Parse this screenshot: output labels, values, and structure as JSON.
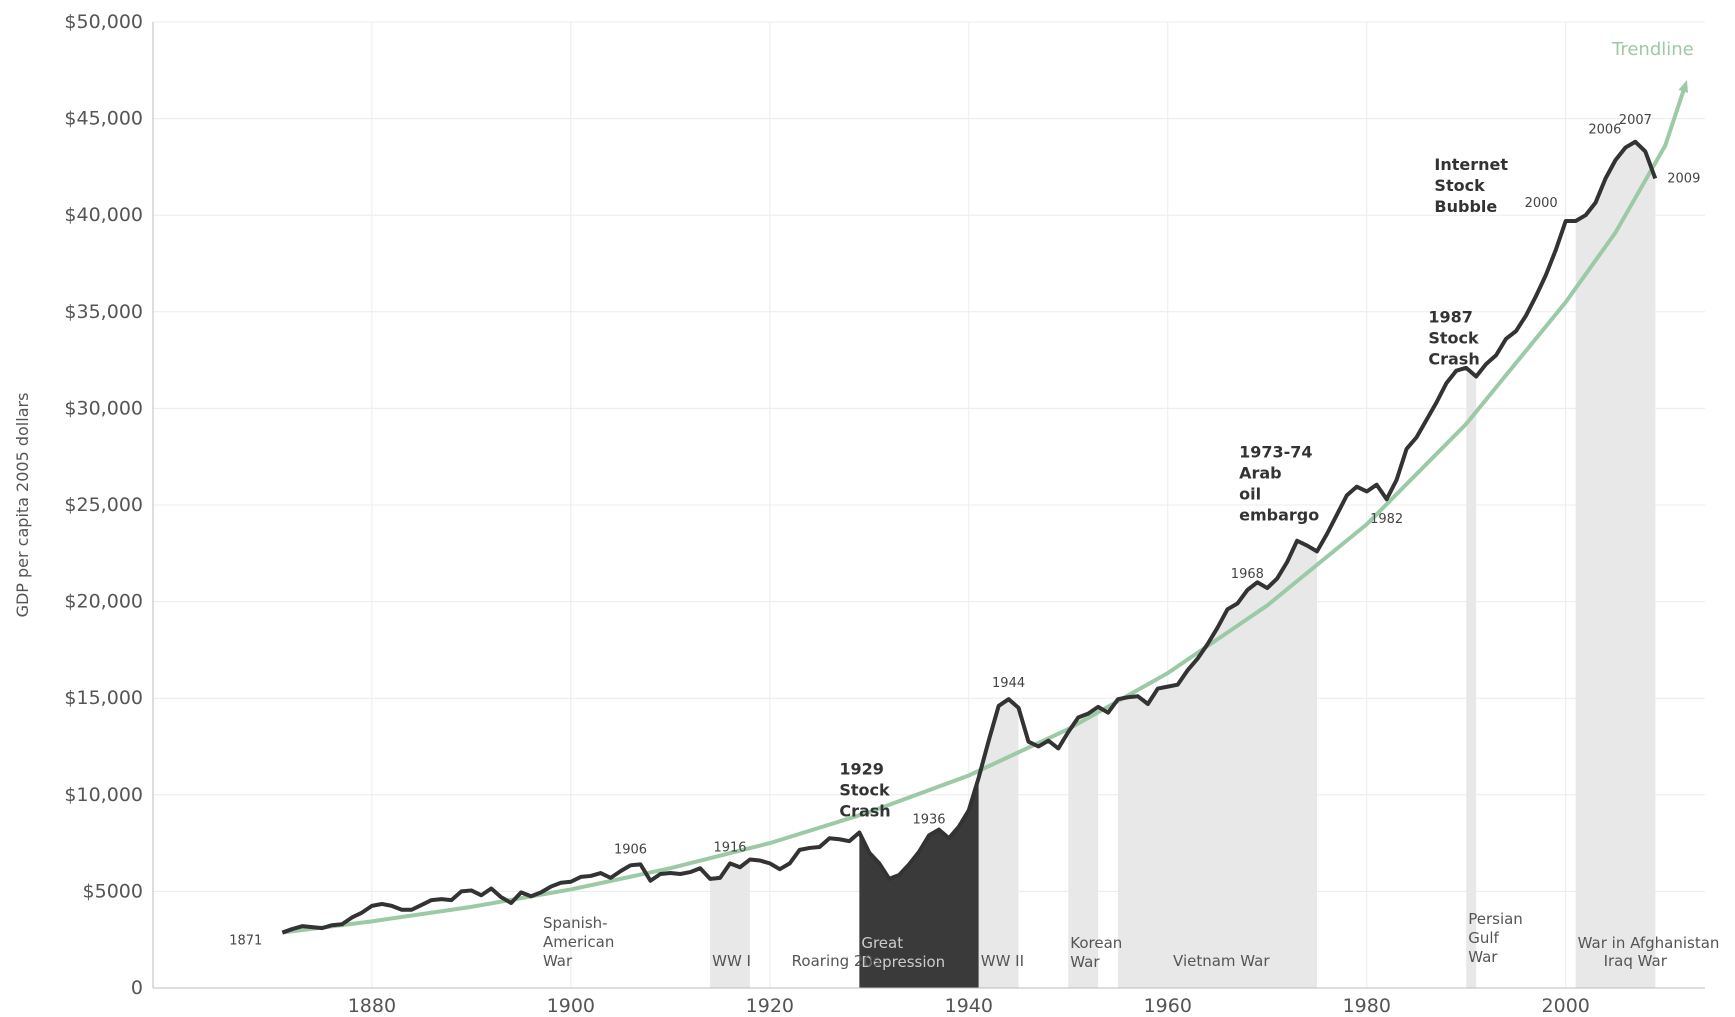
{
  "chart_data": {
    "type": "line",
    "title": "",
    "xlabel": "",
    "ylabel": "GDP per capita 2005 dollars",
    "xlim": [
      1858,
      2014
    ],
    "ylim": [
      0,
      50000
    ],
    "x_ticks": [
      "1880",
      "1900",
      "1920",
      "1940",
      "1960",
      "1980",
      "2000"
    ],
    "y_ticks": [
      "0",
      "$5000",
      "$10,000",
      "$15,000",
      "$20,000",
      "$25,000",
      "$30,000",
      "$35,000",
      "$40,000",
      "$45,000",
      "$50,000"
    ],
    "grid": true,
    "colors": {
      "gdp": "#333333",
      "trend": "#9cc9a6",
      "war": "#e8e8e8",
      "depression": "#3a3a3a",
      "grid": "#ececec"
    },
    "series": [
      {
        "name": "",
        "x": [
          1871,
          1872,
          1873,
          1874,
          1875,
          1876,
          1877,
          1878,
          1879,
          1880,
          1881,
          1882,
          1883,
          1884,
          1885,
          1886,
          1887,
          1888,
          1889,
          1890,
          1891,
          1892,
          1893,
          1894,
          1895,
          1896,
          1897,
          1898,
          1899,
          1900,
          1901,
          1902,
          1903,
          1904,
          1905,
          1906,
          1907,
          1908,
          1909,
          1910,
          1911,
          1912,
          1913,
          1914,
          1915,
          1916,
          1917,
          1918,
          1919,
          1920,
          1921,
          1922,
          1923,
          1924,
          1925,
          1926,
          1927,
          1928,
          1929,
          1930,
          1931,
          1932,
          1933,
          1934,
          1935,
          1936,
          1937,
          1938,
          1939,
          1940,
          1941,
          1942,
          1943,
          1944,
          1945,
          1946,
          1947,
          1948,
          1949,
          1950,
          1951,
          1952,
          1953,
          1954,
          1955,
          1956,
          1957,
          1958,
          1959,
          1960,
          1961,
          1962,
          1963,
          1964,
          1965,
          1966,
          1967,
          1968,
          1969,
          1970,
          1971,
          1972,
          1973,
          1974,
          1975,
          1976,
          1977,
          1978,
          1979,
          1980,
          1981,
          1982,
          1983,
          1984,
          1985,
          1986,
          1987,
          1988,
          1989,
          1990,
          1991,
          1992,
          1993,
          1994,
          1995,
          1996,
          1997,
          1998,
          1999,
          2000,
          2001,
          2002,
          2003,
          2004,
          2005,
          2006,
          2007,
          2008,
          2009
        ],
        "y": [
          2870,
          3050,
          3200,
          3150,
          3100,
          3250,
          3300,
          3650,
          3900,
          4250,
          4350,
          4250,
          4050,
          4050,
          4300,
          4550,
          4600,
          4550,
          5000,
          5050,
          4800,
          5150,
          4700,
          4400,
          4950,
          4750,
          4950,
          5250,
          5450,
          5500,
          5750,
          5800,
          5950,
          5700,
          6050,
          6350,
          6400,
          5550,
          5900,
          5950,
          5900,
          6000,
          6200,
          5650,
          5700,
          6450,
          6250,
          6650,
          6600,
          6450,
          6150,
          6450,
          7150,
          7250,
          7300,
          7750,
          7700,
          7600,
          8050,
          7000,
          6450,
          5650,
          5850,
          6400,
          7050,
          7900,
          8200,
          7750,
          8350,
          9200,
          10900,
          12800,
          14600,
          14950,
          14500,
          12750,
          12500,
          12800,
          12400,
          13250,
          14000,
          14200,
          14550,
          14250,
          14950,
          15050,
          15100,
          14700,
          15500,
          15600,
          15700,
          16450,
          17050,
          17800,
          18650,
          19600,
          19900,
          20600,
          21000,
          20700,
          21200,
          22050,
          23150,
          22900,
          22600,
          23500,
          24500,
          25500,
          25950,
          25700,
          26050,
          25300,
          26300,
          27900,
          28500,
          29400,
          30300,
          31300,
          31950,
          32100,
          31650,
          32300,
          32750,
          33600,
          34000,
          34800,
          35800,
          36900,
          38200,
          39700,
          39700,
          40000,
          40650,
          41900,
          42850,
          43500,
          43800,
          43300,
          41900
        ]
      }
    ],
    "trendline": {
      "label": "Trendline",
      "x": [
        1871,
        1880,
        1890,
        1900,
        1910,
        1920,
        1930,
        1940,
        1950,
        1960,
        1970,
        1980,
        1990,
        2000,
        2005,
        2010,
        2012
      ],
      "y": [
        2870,
        3450,
        4200,
        5100,
        6200,
        7500,
        9100,
        11000,
        13400,
        16300,
        19800,
        24000,
        29200,
        35500,
        39100,
        43600,
        46700
      ]
    },
    "year_labels": [
      {
        "x": 1871,
        "text": "1871"
      },
      {
        "x": 1906,
        "text": "1906"
      },
      {
        "x": 1916,
        "text": "1916"
      },
      {
        "x": 1936,
        "text": "1936"
      },
      {
        "x": 1944,
        "text": "1944"
      },
      {
        "x": 1968,
        "text": "1968"
      },
      {
        "x": 1982,
        "text": "1982"
      },
      {
        "x": 2000,
        "text": "2000"
      },
      {
        "x": 2006,
        "text": "2006"
      },
      {
        "x": 2007,
        "text": "2007"
      },
      {
        "x": 2009,
        "text": "2009"
      }
    ],
    "events": [
      {
        "x": 1929,
        "lines": [
          "1929",
          "Stock",
          "Crash"
        ]
      },
      {
        "x": 1973,
        "lines": [
          "1973-74",
          "Arab",
          "oil",
          "embargo"
        ]
      },
      {
        "x": 1987,
        "lines": [
          "1987",
          "Stock",
          "Crash"
        ]
      },
      {
        "x": 1999,
        "lines": [
          "Internet",
          "Stock",
          "Bubble"
        ]
      }
    ],
    "periods": [
      {
        "name": "war",
        "start": 1914,
        "end": 1918,
        "lines": [
          "WW I"
        ]
      },
      {
        "name": "depression",
        "start": 1929,
        "end": 1941,
        "lines": [
          "Great",
          "Depression"
        ]
      },
      {
        "name": "war",
        "start": 1941,
        "end": 1945,
        "lines": [
          "WW II"
        ]
      },
      {
        "name": "war",
        "start": 1950,
        "end": 1953,
        "lines": [
          "Korean",
          "War"
        ]
      },
      {
        "name": "war",
        "start": 1955,
        "end": 1975,
        "lines": [
          "Vietnam War"
        ]
      },
      {
        "name": "war",
        "start": 1990,
        "end": 1991,
        "lines": [
          "Persian",
          "Gulf",
          "War"
        ]
      },
      {
        "name": "war",
        "start": 2001,
        "end": 2009,
        "lines": [
          "War in Afghanistan"
        ]
      },
      {
        "name": "war",
        "start": 2003,
        "end": 2009,
        "lines": [
          "Iraq War"
        ]
      }
    ],
    "period_texts": [
      {
        "x": 1898,
        "lines": [
          "Spanish-",
          "American",
          "War"
        ]
      },
      {
        "x": 1923,
        "lines": [
          "Roaring 20s"
        ]
      }
    ]
  }
}
